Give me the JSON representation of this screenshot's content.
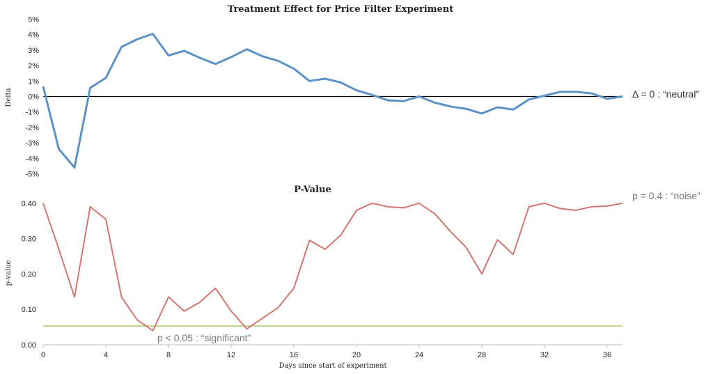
{
  "chart_data": [
    {
      "type": "line",
      "title": "Treatment Effect for Price Filter Experiment",
      "ylabel": "Delta",
      "ylim": [
        -5,
        5
      ],
      "yticks": [
        "5%",
        "4%",
        "3%",
        "2%",
        "1%",
        "0%",
        "-1%",
        "-2%",
        "-3%",
        "-4%",
        "-5%"
      ],
      "grid": false,
      "x": [
        0,
        1,
        2,
        3,
        4,
        5,
        6,
        7,
        8,
        9,
        10,
        11,
        12,
        13,
        14,
        15,
        16,
        17,
        18,
        19,
        20,
        21,
        22,
        23,
        24,
        25,
        26,
        27,
        28,
        29,
        30,
        31,
        32,
        33,
        34,
        35,
        36,
        37
      ],
      "series": [
        {
          "values": [
            0.65,
            -3.4,
            -4.6,
            0.55,
            1.2,
            3.2,
            3.7,
            4.05,
            2.65,
            2.95,
            2.5,
            2.1,
            2.55,
            3.05,
            2.6,
            2.3,
            1.8,
            1.0,
            1.15,
            0.9,
            0.4,
            0.1,
            -0.25,
            -0.3,
            0.0,
            -0.4,
            -0.65,
            -0.8,
            -1.1,
            -0.7,
            -0.85,
            -0.2,
            0.05,
            0.3,
            0.3,
            0.2,
            -0.15,
            0.0
          ],
          "color": "#5b93c7"
        }
      ],
      "reference_line": {
        "value": 0,
        "color": "#000000",
        "annotation": "Δ = 0 : “neutral”"
      }
    },
    {
      "type": "line",
      "title": "P-Value",
      "ylabel": "p-value",
      "xlabel": "Days since start of experiment",
      "ylim": [
        0,
        0.4
      ],
      "yticks": [
        "0.40",
        "0.30",
        "0.20",
        "0.10",
        "0.00"
      ],
      "xlim": [
        0,
        37
      ],
      "xticks": [
        "0",
        "4",
        "8",
        "12",
        "16",
        "20",
        "24",
        "28",
        "32",
        "36"
      ],
      "grid": false,
      "x": [
        0,
        1,
        2,
        3,
        4,
        5,
        6,
        7,
        8,
        9,
        10,
        11,
        12,
        13,
        14,
        15,
        16,
        17,
        18,
        19,
        20,
        21,
        22,
        23,
        24,
        25,
        26,
        27,
        28,
        29,
        30,
        31,
        32,
        33,
        34,
        35,
        36,
        37
      ],
      "series": [
        {
          "values": [
            0.4,
            0.27,
            0.135,
            0.39,
            0.355,
            0.135,
            0.07,
            0.04,
            0.135,
            0.095,
            0.12,
            0.16,
            0.095,
            0.045,
            0.075,
            0.105,
            0.16,
            0.295,
            0.27,
            0.31,
            0.38,
            0.4,
            0.39,
            0.387,
            0.4,
            0.37,
            0.32,
            0.275,
            0.2,
            0.297,
            0.255,
            0.39,
            0.4,
            0.385,
            0.38,
            0.39,
            0.392,
            0.4
          ],
          "color": "#d4766f"
        }
      ],
      "reference_line": {
        "value": 0.05,
        "color": "#a9c46b",
        "annotation": "p < 0.05 : “significant”"
      },
      "annotation_top": "p = 0.4 : “noise”"
    }
  ]
}
